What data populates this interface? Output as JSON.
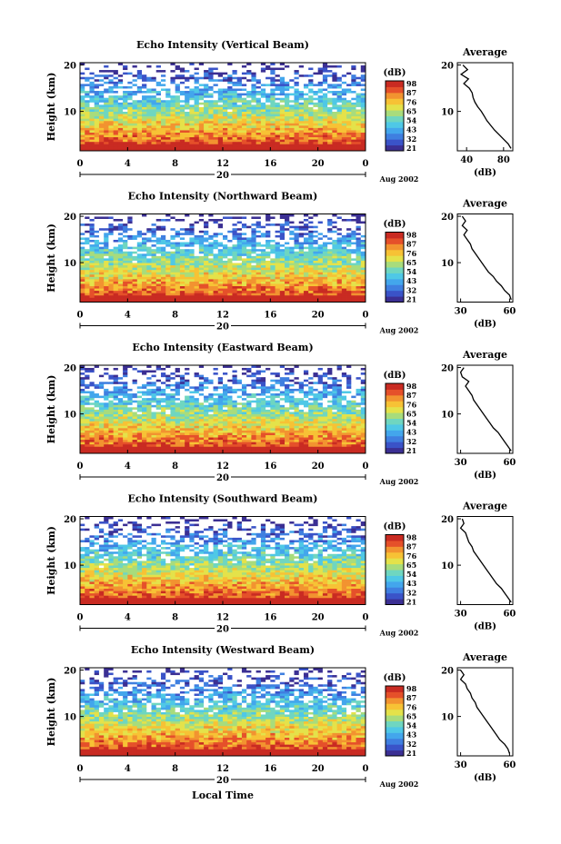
{
  "figure": {
    "x_axis_title": "Local Time",
    "date_label": "Aug 2002",
    "day_label": "20"
  },
  "colors": {
    "scale": [
      "#3b2f93",
      "#3a53c8",
      "#3f7fe0",
      "#43a6ec",
      "#4fc8e6",
      "#6fd6c0",
      "#a8dc7c",
      "#e4e24a",
      "#f7c235",
      "#f29330",
      "#e5502a",
      "#c92b22"
    ],
    "missing": "#ffffff"
  },
  "chart_data": [
    {
      "type": "heatmap",
      "title": "Echo Intensity (Vertical Beam)",
      "ylabel": "Height (km)",
      "xlabel": "Local Time",
      "x_ticks": [
        "0",
        "4",
        "8",
        "12",
        "16",
        "20",
        "0"
      ],
      "x_range": [
        0,
        24
      ],
      "y_ticks": [
        "10",
        "20"
      ],
      "y_range": [
        1.5,
        20.5
      ],
      "colorbar_unit": "(dB)",
      "colorbar_ticks": [
        "21",
        "32",
        "43",
        "54",
        "65",
        "76",
        "87",
        "98"
      ],
      "date": "Aug 2002",
      "day": "20",
      "profile": {
        "title": "Average",
        "xlabel": "(dB)",
        "x_ticks": [
          "40",
          "80"
        ],
        "x_range": [
          30,
          90
        ],
        "y_ticks": [
          "10",
          "20"
        ],
        "heights": [
          20,
          19,
          18,
          17,
          16,
          15,
          14,
          13,
          12,
          11,
          10,
          9,
          8,
          7,
          6,
          5,
          4,
          3,
          2
        ],
        "values": [
          36,
          41,
          34,
          42,
          37,
          43,
          46,
          47,
          49,
          52,
          56,
          59,
          62,
          66,
          70,
          75,
          80,
          85,
          88
        ]
      }
    },
    {
      "type": "heatmap",
      "title": "Echo Intensity (Northward Beam)",
      "ylabel": "Height (km)",
      "xlabel": "Local Time",
      "x_ticks": [
        "0",
        "4",
        "8",
        "12",
        "16",
        "20",
        "0"
      ],
      "x_range": [
        0,
        24
      ],
      "y_ticks": [
        "10",
        "20"
      ],
      "y_range": [
        1.5,
        20.5
      ],
      "colorbar_unit": "(dB)",
      "colorbar_ticks": [
        "21",
        "32",
        "43",
        "54",
        "65",
        "76",
        "87",
        "98"
      ],
      "date": "Aug 2002",
      "day": "20",
      "profile": {
        "title": "Average",
        "xlabel": "(dB)",
        "x_ticks": [
          "30",
          "60"
        ],
        "x_range": [
          28,
          62
        ],
        "y_ticks": [
          "10",
          "20"
        ],
        "heights": [
          20,
          19,
          18,
          17,
          16,
          15,
          14,
          13,
          12,
          11,
          10,
          9,
          8,
          7,
          6,
          5,
          4,
          3,
          2
        ],
        "values": [
          31,
          33,
          31,
          34,
          32,
          34,
          36,
          37,
          39,
          41,
          43,
          45,
          47,
          50,
          52,
          55,
          57,
          60,
          61
        ]
      }
    },
    {
      "type": "heatmap",
      "title": "Echo Intensity (Eastward Beam)",
      "ylabel": "Height (km)",
      "xlabel": "Local Time",
      "x_ticks": [
        "0",
        "4",
        "8",
        "12",
        "16",
        "20",
        "0"
      ],
      "x_range": [
        0,
        24
      ],
      "y_ticks": [
        "10",
        "20"
      ],
      "y_range": [
        1.5,
        20.5
      ],
      "colorbar_unit": "(dB)",
      "colorbar_ticks": [
        "21",
        "32",
        "43",
        "54",
        "65",
        "76",
        "87",
        "98"
      ],
      "date": "Aug 2002",
      "day": "20",
      "profile": {
        "title": "Average",
        "xlabel": "(dB)",
        "x_ticks": [
          "30",
          "60"
        ],
        "x_range": [
          28,
          62
        ],
        "y_ticks": [
          "10",
          "20"
        ],
        "heights": [
          20,
          19,
          18,
          17,
          16,
          15,
          14,
          13,
          12,
          11,
          10,
          9,
          8,
          7,
          6,
          5,
          4,
          3,
          2
        ],
        "values": [
          32,
          30,
          31,
          35,
          33,
          35,
          37,
          38,
          40,
          42,
          44,
          46,
          48,
          50,
          53,
          55,
          57,
          59,
          61
        ]
      }
    },
    {
      "type": "heatmap",
      "title": "Echo Intensity (Southward Beam)",
      "ylabel": "Height (km)",
      "xlabel": "Local Time",
      "x_ticks": [
        "0",
        "4",
        "8",
        "12",
        "16",
        "20",
        "0"
      ],
      "x_range": [
        0,
        24
      ],
      "y_ticks": [
        "10",
        "20"
      ],
      "y_range": [
        1.5,
        20.5
      ],
      "colorbar_unit": "(dB)",
      "colorbar_ticks": [
        "21",
        "32",
        "43",
        "54",
        "65",
        "76",
        "87",
        "98"
      ],
      "date": "Aug 2002",
      "day": "20",
      "profile": {
        "title": "Average",
        "xlabel": "(dB)",
        "x_ticks": [
          "30",
          "60"
        ],
        "x_range": [
          28,
          62
        ],
        "y_ticks": [
          "10",
          "20"
        ],
        "heights": [
          20,
          19,
          18,
          17,
          16,
          15,
          14,
          13,
          12,
          11,
          10,
          9,
          8,
          7,
          6,
          5,
          4,
          3,
          2
        ],
        "values": [
          31,
          32,
          30,
          33,
          34,
          35,
          37,
          38,
          40,
          42,
          44,
          46,
          48,
          50,
          52,
          55,
          57,
          59,
          61
        ]
      }
    },
    {
      "type": "heatmap",
      "title": "Echo Intensity (Westward Beam)",
      "ylabel": "Height (km)",
      "xlabel": "Local Time",
      "x_ticks": [
        "0",
        "4",
        "8",
        "12",
        "16",
        "20",
        "0"
      ],
      "x_range": [
        0,
        24
      ],
      "y_ticks": [
        "10",
        "20"
      ],
      "y_range": [
        1.5,
        20.5
      ],
      "colorbar_unit": "(dB)",
      "colorbar_ticks": [
        "21",
        "32",
        "43",
        "54",
        "65",
        "76",
        "87",
        "98"
      ],
      "date": "Aug 2002",
      "day": "20",
      "profile": {
        "title": "Average",
        "xlabel": "(dB)",
        "x_ticks": [
          "30",
          "60"
        ],
        "x_range": [
          28,
          62
        ],
        "y_ticks": [
          "10",
          "20"
        ],
        "heights": [
          20,
          19,
          18,
          17,
          16,
          15,
          14,
          13,
          12,
          11,
          10,
          9,
          8,
          7,
          6,
          5,
          4,
          3,
          2
        ],
        "values": [
          30,
          32,
          30,
          33,
          34,
          36,
          37,
          39,
          40,
          42,
          44,
          46,
          48,
          50,
          52,
          54,
          57,
          59,
          60
        ]
      }
    }
  ]
}
